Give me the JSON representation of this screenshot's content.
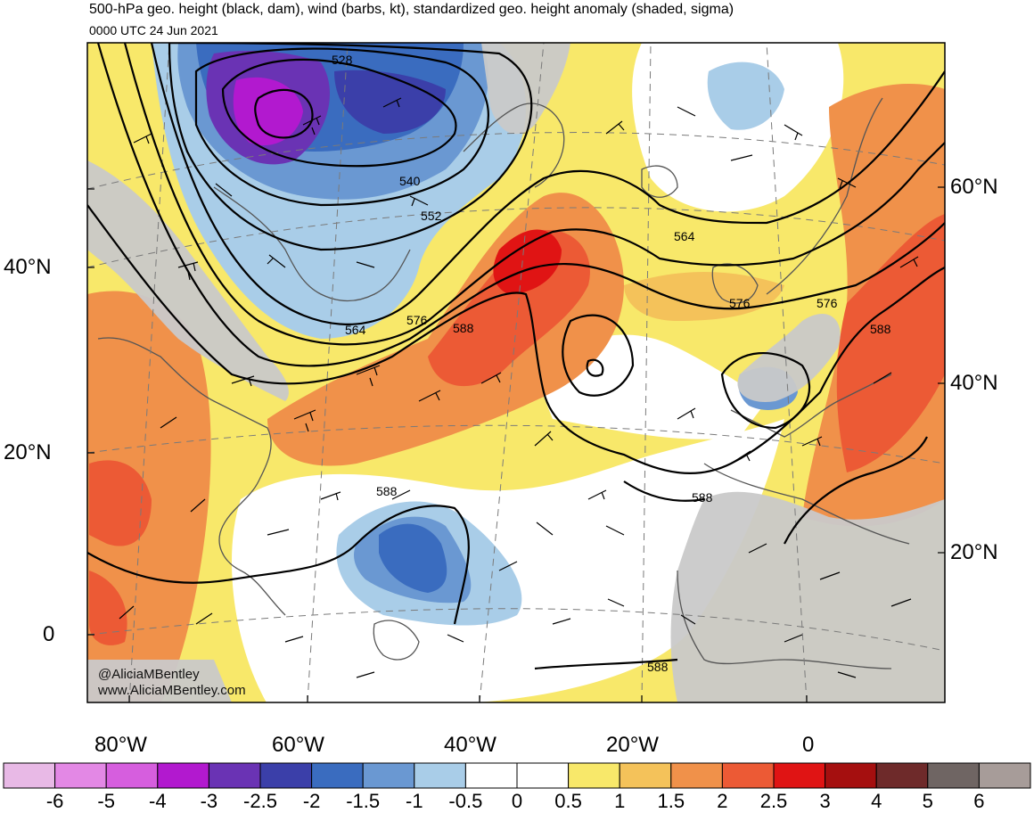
{
  "header": {
    "title": "500-hPa geo. height (black, dam), wind (barbs, kt), standardized geo. height anomaly (shaded, sigma)",
    "subtitle": "0000 UTC 24 Jun 2021"
  },
  "credits": {
    "handle": "@AliciaMBentley",
    "website": "www.AliciaMBentley.com"
  },
  "axes": {
    "lat_left": [
      "60°N",
      "40°N",
      "20°N",
      "0"
    ],
    "lat_right": [
      "60°N",
      "40°N",
      "20°N"
    ],
    "lon_bottom": [
      "80°W",
      "60°W",
      "40°W",
      "20°W",
      "0"
    ]
  },
  "contours": {
    "labels": [
      "528",
      "540",
      "552",
      "564",
      "564",
      "576",
      "576",
      "576",
      "588",
      "588",
      "588",
      "588",
      "588"
    ]
  },
  "colorbar": {
    "ticks": [
      "-6",
      "-5",
      "-4",
      "-3",
      "-2.5",
      "-2",
      "-1.5",
      "-1",
      "-0.5",
      "0",
      "0.5",
      "1",
      "1.5",
      "2",
      "2.5",
      "3",
      "4",
      "5",
      "6"
    ],
    "colors": [
      "#e8b9e6",
      "#e388e5",
      "#d65ede",
      "#b219cf",
      "#6a33b4",
      "#3b3fa9",
      "#3a6cbf",
      "#6a98d2",
      "#a9cde8",
      "#ffffff",
      "#ffffff",
      "#f8e86a",
      "#f4c25a",
      "#f0914a",
      "#ec5a35",
      "#e01414",
      "#a50f0f",
      "#6e2a2a",
      "#6f6563",
      "#a79c99"
    ]
  },
  "colors": {
    "land_gray": "#c9c9c9",
    "coast": "#555555",
    "contour": "#000000"
  }
}
